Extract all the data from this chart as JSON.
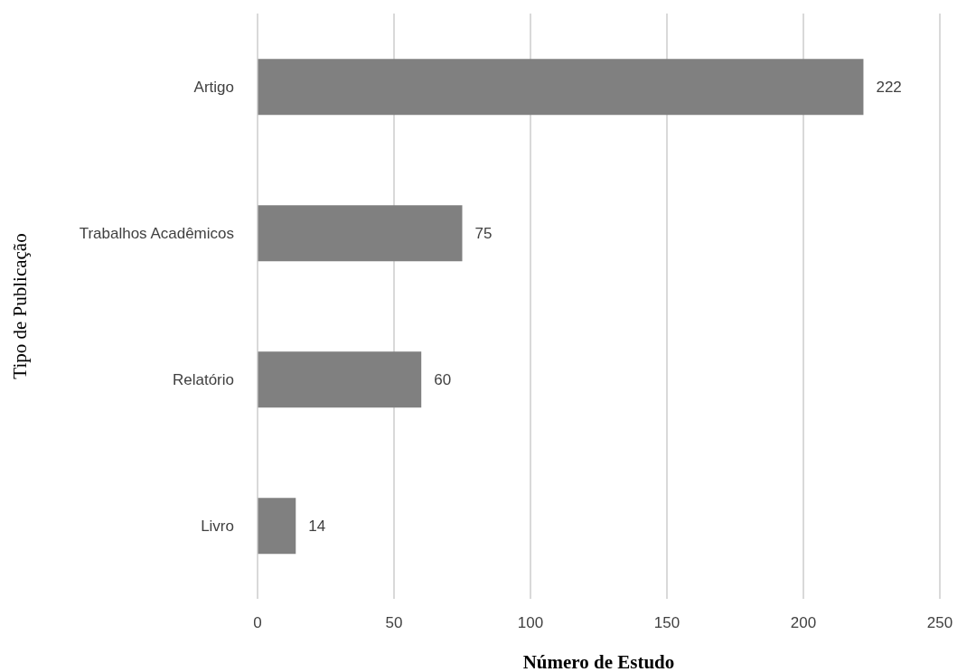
{
  "chart_data": {
    "type": "bar",
    "orientation": "horizontal",
    "xlabel": "Número de Estudo",
    "ylabel": "Tipo de Publicação",
    "categories": [
      "Artigo",
      "Trabalhos Acadêmicos",
      "Relatório",
      "Livro"
    ],
    "values": [
      222,
      75,
      60,
      14
    ],
    "color": "#808080",
    "xlim": [
      0,
      250
    ],
    "xticks": [
      0,
      50,
      100,
      150,
      200,
      250
    ],
    "grid": "x",
    "data_labels": true
  }
}
